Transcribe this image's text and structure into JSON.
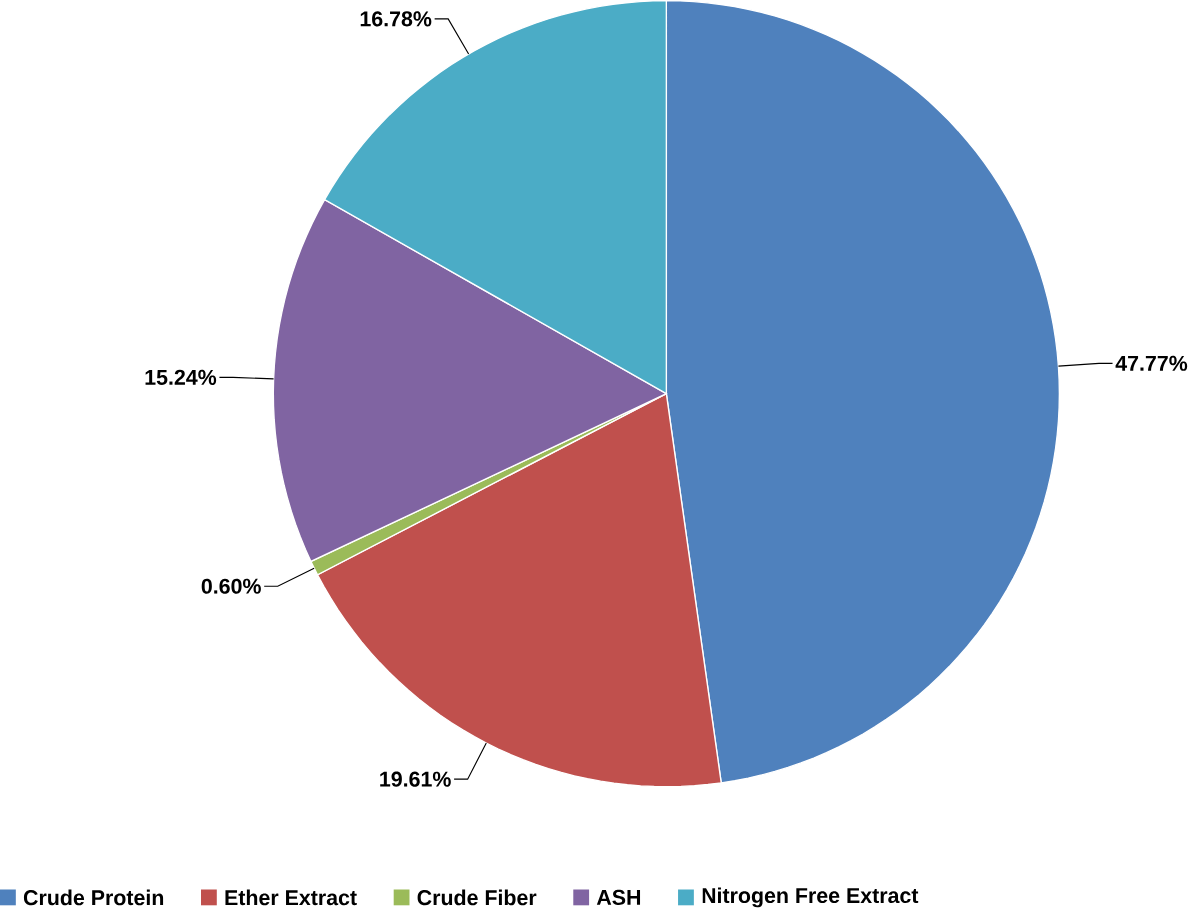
{
  "chart_data": {
    "type": "pie",
    "categories": [
      "Crude Protein",
      "Ether Extract",
      "Crude Fiber",
      "ASH",
      "Nitrogen Free Extract"
    ],
    "values": [
      47.77,
      19.61,
      0.6,
      15.24,
      16.78
    ],
    "colors": [
      "#4f81bd",
      "#c0504d",
      "#9bbb59",
      "#8064a2",
      "#4bacc6"
    ],
    "value_labels": [
      "47.77%",
      "19.61%",
      "0.60%",
      "15.24%",
      "16.78%"
    ],
    "legend": "bottom"
  }
}
